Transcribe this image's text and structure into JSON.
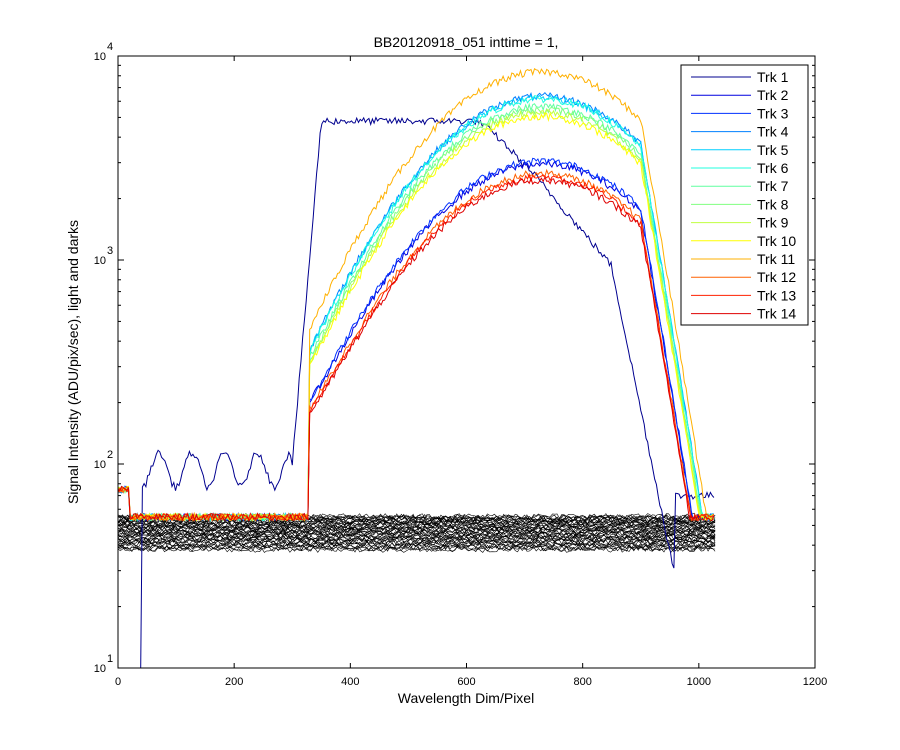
{
  "chart_data": {
    "type": "line",
    "title": "BB20120918_051 inttime = 1,",
    "xlabel": "Wavelength Dim/Pixel",
    "ylabel": "Signal Intensity (ADU/pix/sec), light and darks",
    "xlim": [
      0,
      1200
    ],
    "ylim": [
      10,
      10000
    ],
    "yscale": "log",
    "grid": false,
    "legend_position": "top-right",
    "x_ticks": [
      "0",
      "200",
      "400",
      "600",
      "800",
      "1000",
      "1200"
    ],
    "y_ticks": [
      {
        "base": "10",
        "exp": "1"
      },
      {
        "base": "10",
        "exp": "2"
      },
      {
        "base": "10",
        "exp": "3"
      },
      {
        "base": "10",
        "exp": "4"
      }
    ],
    "series": [
      {
        "name": "Trk 1",
        "color": "#00008f",
        "shape": "trk1",
        "peak": 4800,
        "dark": 40
      },
      {
        "name": "Trk 2",
        "color": "#0000df",
        "shape": "low",
        "peak": 2900,
        "dark": 41
      },
      {
        "name": "Trk 3",
        "color": "#0030ff",
        "shape": "low",
        "peak": 3000,
        "dark": 42
      },
      {
        "name": "Trk 4",
        "color": "#0080ff",
        "shape": "high",
        "peak": 6300,
        "dark": 43
      },
      {
        "name": "Trk 5",
        "color": "#00cfff",
        "shape": "high",
        "peak": 6200,
        "dark": 44
      },
      {
        "name": "Trk 6",
        "color": "#20ffdf",
        "shape": "high",
        "peak": 6100,
        "dark": 45
      },
      {
        "name": "Trk 7",
        "color": "#60ffa0",
        "shape": "high",
        "peak": 5600,
        "dark": 46
      },
      {
        "name": "Trk 8",
        "color": "#80ff80",
        "shape": "high",
        "peak": 5400,
        "dark": 47
      },
      {
        "name": "Trk 9",
        "color": "#c0ff40",
        "shape": "high",
        "peak": 5200,
        "dark": 48
      },
      {
        "name": "Trk 10",
        "color": "#ffff00",
        "shape": "high",
        "peak": 5000,
        "dark": 49
      },
      {
        "name": "Trk 11",
        "color": "#ffb000",
        "shape": "high",
        "peak": 8300,
        "dark": 50
      },
      {
        "name": "Trk 12",
        "color": "#ff6000",
        "shape": "low",
        "peak": 2600,
        "dark": 51
      },
      {
        "name": "Trk 13",
        "color": "#ff2000",
        "shape": "low",
        "peak": 2500,
        "dark": 52
      },
      {
        "name": "Trk 14",
        "color": "#df0000",
        "shape": "low",
        "peak": 2400,
        "dark": 53
      }
    ],
    "dark_color": "#000000",
    "light_x_range": [
      0,
      1028
    ],
    "dark_x_range": [
      0,
      1028
    ]
  }
}
